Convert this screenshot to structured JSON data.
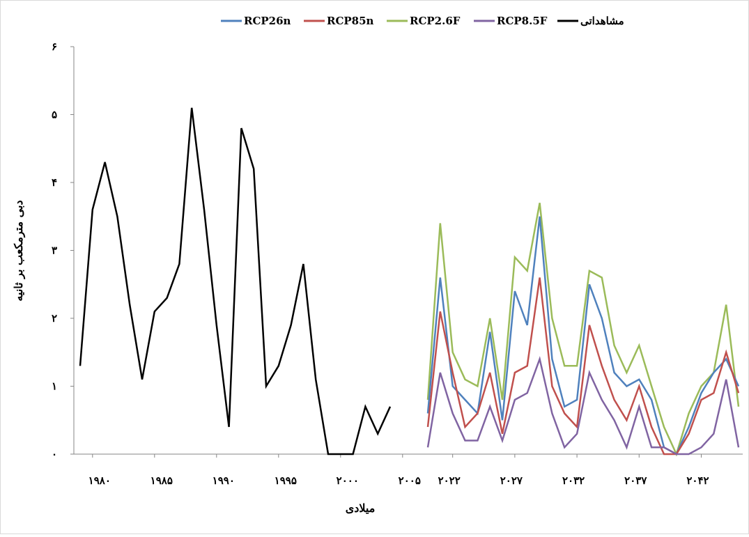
{
  "chart_data": {
    "type": "line",
    "title": "",
    "xlabel": "میلادی",
    "ylabel": "دبی مترمکعب بر ثانیه",
    "ylim": [
      0,
      6
    ],
    "y_ticks": [
      "۰",
      "۱",
      "۲",
      "۳",
      "۴",
      "۵",
      "۶"
    ],
    "grid": false,
    "legend_position": "top",
    "observed": {
      "name": "مشاهداتی",
      "color": "#000000",
      "x": [
        1979,
        1980,
        1981,
        1982,
        1983,
        1984,
        1985,
        1986,
        1987,
        1988,
        1989,
        1990,
        1991,
        1992,
        1993,
        1994,
        1995,
        1996,
        1997,
        1998,
        1999,
        2000,
        2001,
        2002,
        2003,
        2004,
        2005
      ],
      "values": [
        1.3,
        3.6,
        4.3,
        3.5,
        2.2,
        1.1,
        2.1,
        2.3,
        2.8,
        5.1,
        3.6,
        1.9,
        0.4,
        4.8,
        4.2,
        1.0,
        1.3,
        1.9,
        2.8,
        1.1,
        0.0,
        0.0,
        0.0,
        0.7,
        0.3,
        0.7,
        null
      ],
      "x_tick_labels": [
        "۱۹۸۰",
        "۱۹۸۵",
        "۱۹۹۰",
        "۱۹۹۵",
        "۲۰۰۰",
        "۲۰۰۵"
      ]
    },
    "future": {
      "x": [
        2020,
        2021,
        2022,
        2023,
        2024,
        2025,
        2026,
        2027,
        2028,
        2029,
        2030,
        2031,
        2032,
        2033,
        2034,
        2035,
        2036,
        2037,
        2038,
        2039,
        2040,
        2041,
        2042,
        2043,
        2044,
        2045
      ],
      "x_tick_labels": [
        "۲۰۲۲",
        "۲۰۲۷",
        "۲۰۳۲",
        "۲۰۳۷",
        "۲۰۴۲"
      ],
      "x_tick_years": [
        2022,
        2027,
        2032,
        2037,
        2042
      ],
      "series": [
        {
          "name": "RCP2.6F",
          "color": "#9bbb59",
          "values": [
            0.8,
            3.4,
            1.5,
            1.1,
            1.0,
            2.0,
            0.8,
            2.9,
            2.7,
            3.7,
            2.0,
            1.3,
            1.3,
            2.7,
            2.6,
            1.6,
            1.2,
            1.6,
            1.0,
            0.4,
            0.0,
            0.6,
            1.0,
            1.2,
            2.2,
            0.7
          ]
        },
        {
          "name": "RCP26n",
          "color": "#4f81bd",
          "values": [
            0.6,
            2.6,
            1.0,
            0.8,
            0.6,
            1.8,
            0.5,
            2.4,
            1.9,
            3.5,
            1.4,
            0.7,
            0.8,
            2.5,
            2.0,
            1.2,
            1.0,
            1.1,
            0.8,
            0.1,
            0.0,
            0.4,
            0.9,
            1.2,
            1.4,
            1.0
          ]
        },
        {
          "name": "RCP85n",
          "color": "#c0504d",
          "values": [
            0.4,
            2.1,
            1.2,
            0.4,
            0.6,
            1.2,
            0.3,
            1.2,
            1.3,
            2.6,
            1.0,
            0.6,
            0.4,
            1.9,
            1.3,
            0.8,
            0.5,
            1.0,
            0.4,
            0.0,
            0.0,
            0.3,
            0.8,
            0.9,
            1.5,
            0.9
          ]
        },
        {
          "name": "RCP8.5F",
          "color": "#8064a2",
          "values": [
            0.1,
            1.2,
            0.6,
            0.2,
            0.2,
            0.7,
            0.2,
            0.8,
            0.9,
            1.4,
            0.6,
            0.1,
            0.3,
            1.2,
            0.8,
            0.5,
            0.1,
            0.7,
            0.1,
            0.1,
            0.0,
            0.0,
            0.1,
            0.3,
            1.1,
            0.1
          ]
        }
      ]
    },
    "legend": [
      {
        "label": "RCP26n",
        "color": "#4f81bd"
      },
      {
        "label": "RCP85n",
        "color": "#c0504d"
      },
      {
        "label": "RCP2.6F",
        "color": "#9bbb59"
      },
      {
        "label": "RCP8.5F",
        "color": "#8064a2"
      },
      {
        "label": "مشاهداتی",
        "color": "#000000"
      }
    ]
  }
}
